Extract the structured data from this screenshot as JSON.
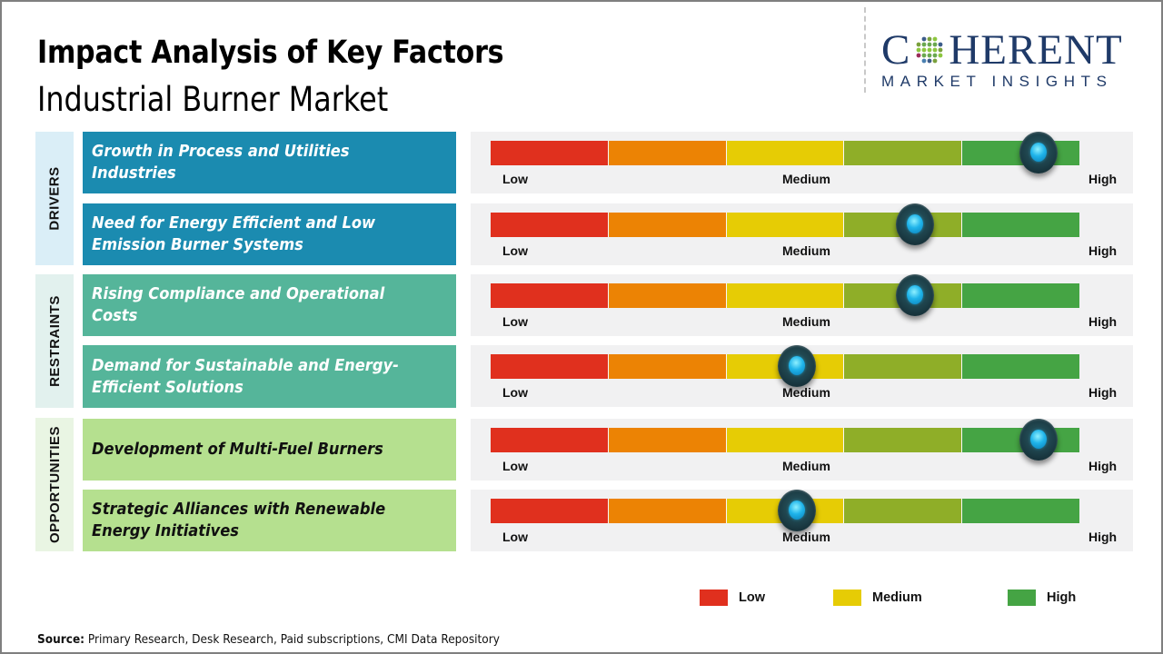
{
  "header": {
    "title": "Impact Analysis of Key Factors",
    "subtitle": "Industrial Burner Market"
  },
  "logo": {
    "main_prefix": "C",
    "main_suffix": "HERENT",
    "sub": "MARKET INSIGHTS",
    "color": "#1f3a68"
  },
  "scale": {
    "low_label": "Low",
    "medium_label": "Medium",
    "high_label": "High",
    "segment_colors": [
      "#e0301e",
      "#ec8304",
      "#e6cc05",
      "#8fae28",
      "#45a444"
    ]
  },
  "categories": [
    {
      "name": "DRIVERS",
      "label_bg": "#daeef7",
      "box_bg": "#1b8bb0",
      "text_color": "#ffffff"
    },
    {
      "name": "RESTRAINTS",
      "label_bg": "#e2f1ee",
      "box_bg": "#55b59a",
      "text_color": "#ffffff"
    },
    {
      "name": "OPPORTUNITIES",
      "label_bg": "#e9f5e3",
      "box_bg": "#b5e08f",
      "text_color": "#111111"
    }
  ],
  "chart_data": {
    "type": "table",
    "title": "Impact Analysis of Key Factors - Industrial Burner Market",
    "scale_labels": [
      "Low",
      "Medium",
      "High"
    ],
    "value_range": [
      0,
      1
    ],
    "rows": [
      {
        "category": "DRIVERS",
        "factor": "Growth in Process and Utilities Industries",
        "impact": 0.93,
        "impact_level": "High"
      },
      {
        "category": "DRIVERS",
        "factor": "Need for Energy Efficient and Low Emission Burner Systems",
        "impact": 0.72,
        "impact_level": "Medium-High"
      },
      {
        "category": "RESTRAINTS",
        "factor": "Rising Compliance and Operational Costs",
        "impact": 0.72,
        "impact_level": "Medium-High"
      },
      {
        "category": "RESTRAINTS",
        "factor": "Demand for Sustainable and Energy-Efficient Solutions",
        "impact": 0.52,
        "impact_level": "Medium"
      },
      {
        "category": "OPPORTUNITIES",
        "factor": "Development of Multi-Fuel Burners",
        "impact": 0.93,
        "impact_level": "High"
      },
      {
        "category": "OPPORTUNITIES",
        "factor": "Strategic Alliances with Renewable Energy Initiatives",
        "impact": 0.52,
        "impact_level": "Medium"
      }
    ],
    "legend": [
      {
        "label": "Low",
        "color": "#e0301e"
      },
      {
        "label": "Medium",
        "color": "#e6cc05"
      },
      {
        "label": "High",
        "color": "#45a444"
      }
    ]
  },
  "footer": {
    "source_label": "Source:",
    "source_text": " Primary Research, Desk Research, Paid subscriptions, CMI Data Repository"
  }
}
